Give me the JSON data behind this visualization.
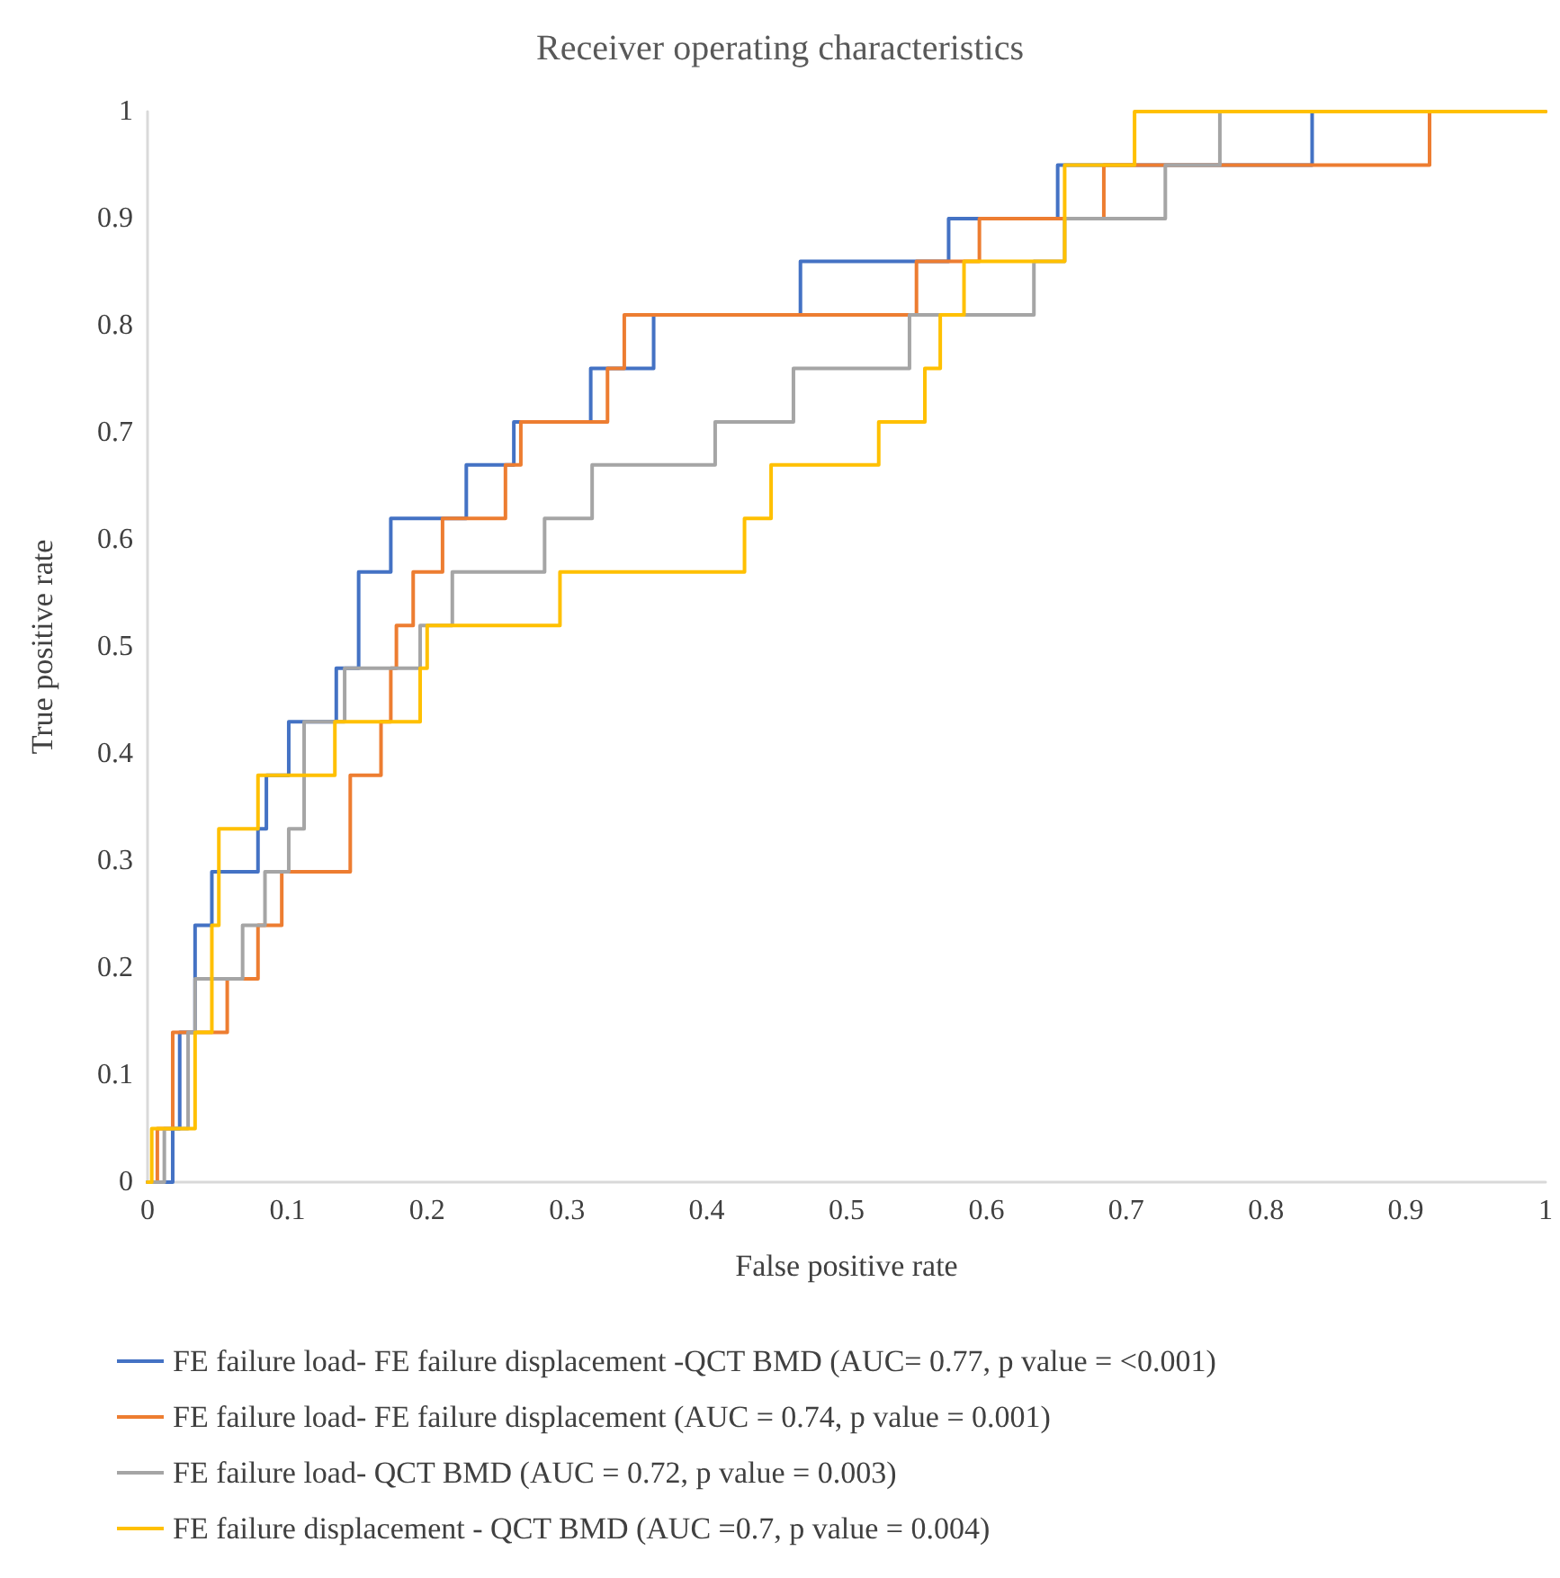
{
  "chart_data": {
    "type": "step",
    "title": "Receiver operating characteristics",
    "xlabel": "False positive rate",
    "ylabel": "True positive rate",
    "xlim": [
      0,
      1
    ],
    "ylim": [
      0,
      1
    ],
    "xticks": [
      0,
      0.1,
      0.2,
      0.3,
      0.4,
      0.5,
      0.6,
      0.7,
      0.8,
      0.9,
      1
    ],
    "yticks": [
      0,
      0.1,
      0.2,
      0.3,
      0.4,
      0.5,
      0.6,
      0.7,
      0.8,
      0.9,
      1
    ],
    "grid": false,
    "legend": "bottom",
    "marker": "none",
    "line_style": "solid",
    "series": [
      {
        "name": "FE failure load- FE failure displacement -QCT BMD (AUC= 0.77, p value = <0.001)",
        "color": "#4472c4",
        "x": [
          0,
          0.018,
          0.023,
          0.034,
          0.046,
          0.079,
          0.085,
          0.101,
          0.135,
          0.151,
          0.174,
          0.228,
          0.262,
          0.317,
          0.362,
          0.467,
          0.573,
          0.651,
          0.833
        ],
        "values": [
          0,
          0.05,
          0.14,
          0.24,
          0.29,
          0.33,
          0.38,
          0.43,
          0.48,
          0.57,
          0.62,
          0.67,
          0.71,
          0.76,
          0.81,
          0.86,
          0.9,
          0.95,
          1
        ]
      },
      {
        "name": "FE failure load- FE failure displacement (AUC = 0.74, p value = 0.001)",
        "color": "#ed7d31",
        "x": [
          0,
          0.007,
          0.018,
          0.057,
          0.079,
          0.096,
          0.145,
          0.167,
          0.174,
          0.178,
          0.19,
          0.211,
          0.256,
          0.267,
          0.329,
          0.341,
          0.55,
          0.595,
          0.684,
          0.917,
          1
        ],
        "values": [
          0,
          0.05,
          0.14,
          0.19,
          0.24,
          0.29,
          0.38,
          0.43,
          0.48,
          0.52,
          0.57,
          0.62,
          0.67,
          0.71,
          0.76,
          0.81,
          0.86,
          0.9,
          0.95,
          1,
          1
        ]
      },
      {
        "name": "FE failure load- QCT BMD (AUC = 0.72, p value = 0.003)",
        "color": "#a5a5a5",
        "x": [
          0,
          0.012,
          0.029,
          0.034,
          0.068,
          0.084,
          0.101,
          0.112,
          0.141,
          0.195,
          0.218,
          0.284,
          0.318,
          0.406,
          0.462,
          0.545,
          0.634,
          0.656,
          0.728,
          0.767
        ],
        "values": [
          0,
          0.05,
          0.14,
          0.19,
          0.24,
          0.29,
          0.33,
          0.43,
          0.48,
          0.52,
          0.57,
          0.62,
          0.67,
          0.71,
          0.76,
          0.81,
          0.86,
          0.9,
          0.95,
          1
        ]
      },
      {
        "name": "FE failure displacement - QCT BMD (AUC =0.7, p value = 0.004)",
        "color": "#ffc000",
        "x": [
          0,
          0.003,
          0.034,
          0.046,
          0.051,
          0.079,
          0.134,
          0.195,
          0.2,
          0.295,
          0.427,
          0.446,
          0.523,
          0.556,
          0.567,
          0.584,
          0.656,
          0.706,
          1
        ],
        "values": [
          0,
          0.05,
          0.14,
          0.24,
          0.33,
          0.38,
          0.43,
          0.48,
          0.52,
          0.57,
          0.62,
          0.67,
          0.71,
          0.76,
          0.81,
          0.86,
          0.95,
          1,
          1
        ]
      }
    ]
  }
}
